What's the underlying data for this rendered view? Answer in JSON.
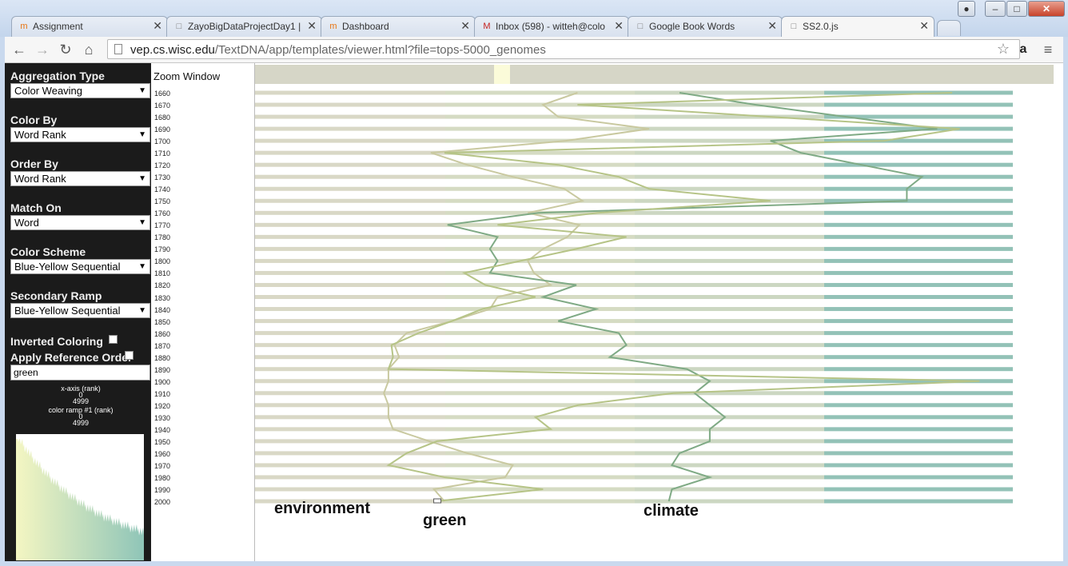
{
  "browser": {
    "tabs": [
      {
        "label": "Assignment",
        "icon": "moodle-icon",
        "active": false
      },
      {
        "label": "ZayoBigDataProjectDay1 |",
        "icon": "page-icon",
        "active": false
      },
      {
        "label": "Dashboard",
        "icon": "moodle-icon",
        "active": false
      },
      {
        "label": "Inbox (598) - witteh@colo",
        "icon": "gmail-icon",
        "active": false
      },
      {
        "label": "Google Book Words",
        "icon": "page-icon",
        "active": false
      },
      {
        "label": "SS2.0.js",
        "icon": "page-icon",
        "active": true
      }
    ],
    "url_host": "vep.cs.wisc.edu",
    "url_path": "/TextDNA/app/templates/viewer.html?file=tops-5000_genomes"
  },
  "sidebar": {
    "aggregation_label": "Aggregation Type",
    "aggregation_value": "Color Weaving",
    "colorby_label": "Color By",
    "colorby_value": "Word Rank",
    "orderby_label": "Order By",
    "orderby_value": "Word Rank",
    "matchon_label": "Match On",
    "matchon_value": "Word",
    "scheme_label": "Color Scheme",
    "scheme_value": "Blue-Yellow Sequential",
    "secondary_label": "Secondary Ramp",
    "secondary_value": "Blue-Yellow Sequential",
    "inverted_label": "Inverted Coloring",
    "inverted_checked": false,
    "refOrder_label": "Apply Reference Order",
    "refOrder_checked": false,
    "search_value": "green",
    "xaxis_title": "x-axis (rank)",
    "xaxis_min": "0",
    "xaxis_max": "4999",
    "ramp_title": "color ramp #1 (rank)",
    "ramp_min": "0",
    "ramp_max": "4999"
  },
  "zoom": {
    "title": "Zoom Window"
  },
  "years": [
    "1660",
    "1670",
    "1680",
    "1690",
    "1700",
    "1710",
    "1720",
    "1730",
    "1740",
    "1750",
    "1760",
    "1770",
    "1780",
    "1790",
    "1800",
    "1810",
    "1820",
    "1830",
    "1840",
    "1850",
    "1860",
    "1870",
    "1880",
    "1890",
    "1900",
    "1910",
    "1920",
    "1930",
    "1940",
    "1950",
    "1960",
    "1970",
    "1980",
    "1990",
    "2000"
  ],
  "colors": {
    "yellow_light": "#f4f6c2",
    "teal": "#8fc5b8",
    "stripe_tan": "#d9d8c6",
    "stripe_green": "#d5dbc3",
    "stripe_sage": "#ccd7c2",
    "stripe_teal": "#93c2b7"
  },
  "chart_data": {
    "type": "line",
    "x_range": [
      0,
      4999
    ],
    "series": [
      {
        "name": "environment",
        "color": "#c9c9a0",
        "x": [
          2127,
          1900,
          2000,
          2600,
          2050,
          1160,
          1400,
          1700,
          2040,
          2160,
          1800,
          2140,
          2060,
          1900,
          1800,
          1840,
          1950,
          1600,
          1550,
          1300,
          1000,
          920,
          950,
          880,
          880,
          850,
          880,
          880,
          910,
          1150,
          1400,
          1700,
          1650,
          1180,
          1250
        ]
      },
      {
        "name": "climate",
        "color": "#7faa85",
        "x": [
          2800,
          3300,
          3900,
          4500,
          3400,
          3600,
          4000,
          4400,
          4300,
          4300,
          1870,
          1270,
          1600,
          1550,
          1600,
          1550,
          2120,
          1900,
          2250,
          2000,
          2400,
          2450,
          2340,
          2850,
          3000,
          2900,
          3000,
          3100,
          3000,
          3000,
          2800,
          2750,
          3000,
          2750,
          2730
        ]
      },
      {
        "name": "green",
        "color": "#b6c487",
        "x": [
          4599,
          2127,
          3400,
          4649,
          4149,
          1250,
          2000,
          2400,
          2600,
          3400,
          2260,
          1600,
          2450,
          2120,
          1750,
          1380,
          1520,
          1850,
          1500,
          1300,
          1080,
          900,
          910,
          880,
          4779,
          2760,
          2130,
          1850,
          1950,
          1200,
          1000,
          880,
          1250,
          1900,
          1200
        ]
      }
    ],
    "labels": [
      {
        "text": "environment",
        "series": "environment"
      },
      {
        "text": "green",
        "series": "green"
      },
      {
        "text": "climate",
        "series": "climate"
      }
    ]
  }
}
